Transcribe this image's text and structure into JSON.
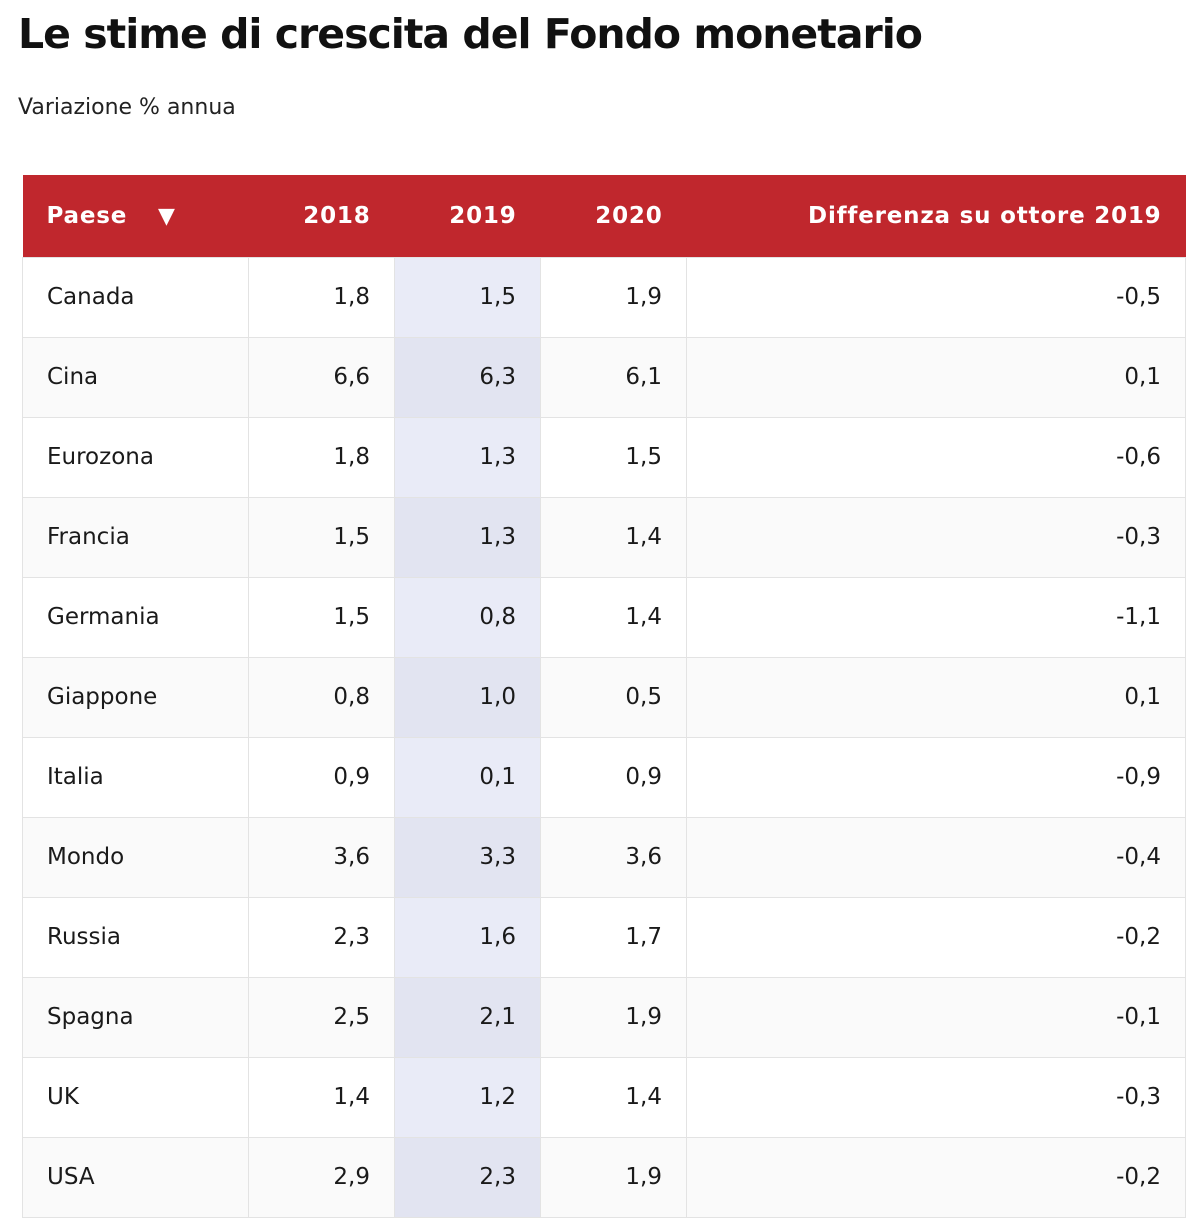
{
  "title": "Le stime di crescita del Fondo monetario",
  "subtitle": "Variazione % annua",
  "table": {
    "headers": {
      "country": "Paese",
      "sort_icon": "▼",
      "y2018": "2018",
      "y2019": "2019",
      "y2020": "2020",
      "diff": "Differenza su ottore 2019"
    },
    "rows": [
      {
        "country": "Canada",
        "y2018": "1,8",
        "y2019": "1,5",
        "y2020": "1,9",
        "diff": "-0,5"
      },
      {
        "country": "Cina",
        "y2018": "6,6",
        "y2019": "6,3",
        "y2020": "6,1",
        "diff": "0,1"
      },
      {
        "country": "Eurozona",
        "y2018": "1,8",
        "y2019": "1,3",
        "y2020": "1,5",
        "diff": "-0,6"
      },
      {
        "country": "Francia",
        "y2018": "1,5",
        "y2019": "1,3",
        "y2020": "1,4",
        "diff": "-0,3"
      },
      {
        "country": "Germania",
        "y2018": "1,5",
        "y2019": "0,8",
        "y2020": "1,4",
        "diff": "-1,1"
      },
      {
        "country": "Giappone",
        "y2018": "0,8",
        "y2019": "1,0",
        "y2020": "0,5",
        "diff": "0,1"
      },
      {
        "country": "Italia",
        "y2018": "0,9",
        "y2019": "0,1",
        "y2020": "0,9",
        "diff": "-0,9"
      },
      {
        "country": "Mondo",
        "y2018": "3,6",
        "y2019": "3,3",
        "y2020": "3,6",
        "diff": "-0,4"
      },
      {
        "country": "Russia",
        "y2018": "2,3",
        "y2019": "1,6",
        "y2020": "1,7",
        "diff": "-0,2"
      },
      {
        "country": "Spagna",
        "y2018": "2,5",
        "y2019": "2,1",
        "y2020": "1,9",
        "diff": "-0,1"
      },
      {
        "country": "UK",
        "y2018": "1,4",
        "y2019": "1,2",
        "y2020": "1,4",
        "diff": "-0,3"
      },
      {
        "country": "USA",
        "y2018": "2,9",
        "y2019": "2,3",
        "y2020": "1,9",
        "diff": "-0,2"
      }
    ]
  },
  "colors": {
    "header_bg": "#c0272d",
    "highlight_column": "#e9ebf7"
  },
  "chart_data": {
    "type": "table",
    "title": "Le stime di crescita del Fondo monetario",
    "subtitle": "Variazione % annua",
    "columns": [
      "Paese",
      "2018",
      "2019",
      "2020",
      "Differenza su ottore 2019"
    ],
    "rows": [
      [
        "Canada",
        1.8,
        1.5,
        1.9,
        -0.5
      ],
      [
        "Cina",
        6.6,
        6.3,
        6.1,
        0.1
      ],
      [
        "Eurozona",
        1.8,
        1.3,
        1.5,
        -0.6
      ],
      [
        "Francia",
        1.5,
        1.3,
        1.4,
        -0.3
      ],
      [
        "Germania",
        1.5,
        0.8,
        1.4,
        -1.1
      ],
      [
        "Giappone",
        0.8,
        1.0,
        0.5,
        0.1
      ],
      [
        "Italia",
        0.9,
        0.1,
        0.9,
        -0.9
      ],
      [
        "Mondo",
        3.6,
        3.3,
        3.6,
        -0.4
      ],
      [
        "Russia",
        2.3,
        1.6,
        1.7,
        -0.2
      ],
      [
        "Spagna",
        2.5,
        2.1,
        1.9,
        -0.1
      ],
      [
        "UK",
        1.4,
        1.2,
        1.4,
        -0.3
      ],
      [
        "USA",
        2.9,
        2.3,
        1.9,
        -0.2
      ]
    ],
    "sorted_by": "Paese",
    "highlighted_column": "2019"
  }
}
